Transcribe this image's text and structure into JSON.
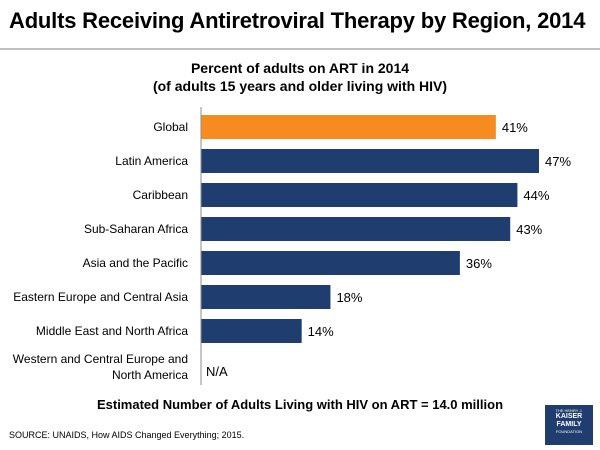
{
  "header": {
    "title": "Adults Receiving Antiretroviral Therapy by Region, 2014"
  },
  "chart_data": {
    "type": "bar",
    "orientation": "horizontal",
    "title": "Percent of adults on ART in 2014",
    "subtitle": "(of adults 15 years and older living with HIV)",
    "categories": [
      "Global",
      "Latin America",
      "Caribbean",
      "Sub-Saharan Africa",
      "Asia and the Pacific",
      "Eastern Europe and Central Asia",
      "Middle East and North Africa",
      "Western and Central Europe and North America"
    ],
    "values": [
      41,
      47,
      44,
      43,
      36,
      18,
      14,
      null
    ],
    "labels": [
      "41%",
      "47%",
      "44%",
      "43%",
      "36%",
      "18%",
      "14%",
      "N/A"
    ],
    "xlim": [
      0,
      47
    ],
    "colors": {
      "highlight": "#f68b1f",
      "bar": "#1f3d6e"
    },
    "highlight_index": 0,
    "grid": false,
    "legend": "none"
  },
  "footnote": "Estimated Number of Adults Living with HIV on ART = 14.0 million",
  "source": "SOURCE: UNAIDS, How AIDS Changed Everything; 2015.",
  "logo": {
    "line1": "THE HENRY J.",
    "line2": "KAISER",
    "line3": "FAMILY",
    "line4": "FOUNDATION"
  }
}
